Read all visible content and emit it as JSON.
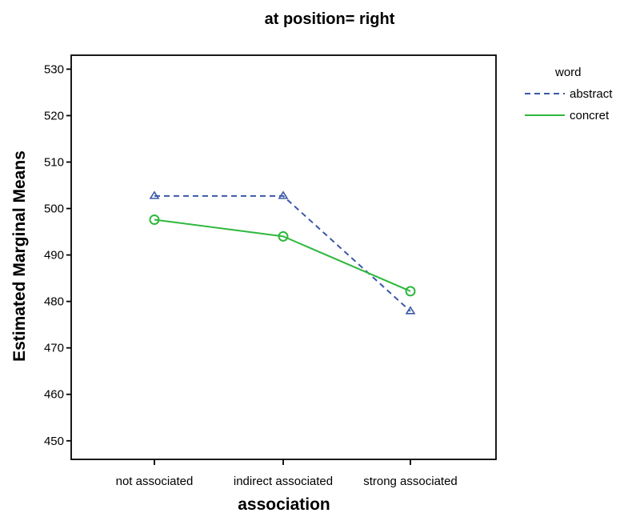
{
  "chart_data": {
    "type": "line",
    "title": "at position= right",
    "xlabel": "association",
    "ylabel": "Estimated Marginal Means",
    "categories": [
      "not associated",
      "indirect associated",
      "strong associated"
    ],
    "ylim": [
      446,
      533
    ],
    "yticks": [
      450,
      460,
      470,
      480,
      490,
      500,
      510,
      520,
      530
    ],
    "grid": false,
    "legend": {
      "title": "word",
      "placement": "top-right outside"
    },
    "series": [
      {
        "name": "abstract",
        "values": [
          502.7,
          502.7,
          477.9
        ],
        "color": "#3b58a8",
        "line_style": "dashed",
        "marker": "triangle"
      },
      {
        "name": "concret",
        "values": [
          497.6,
          494.0,
          482.2
        ],
        "color": "#2fb83d",
        "line_style": "solid",
        "marker": "circle"
      }
    ]
  }
}
